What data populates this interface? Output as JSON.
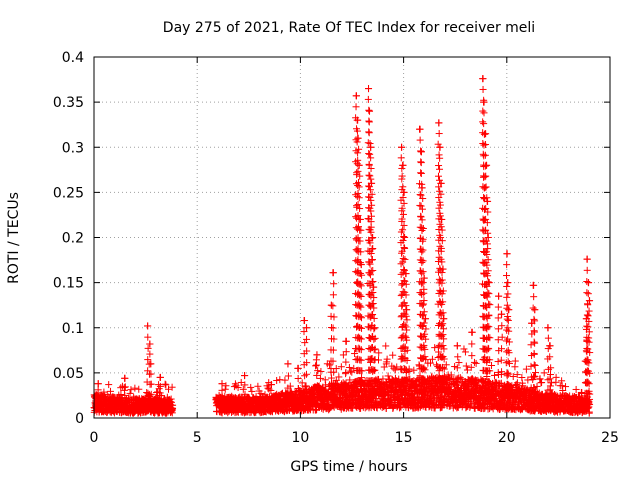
{
  "chart_data": {
    "type": "scatter",
    "title": "Day 275 of 2021, Rate Of TEC Index for receiver meli",
    "xlabel": "GPS time / hours",
    "ylabel": "ROTI / TECUs",
    "xlim": [
      0,
      25
    ],
    "ylim": [
      0,
      0.4
    ],
    "x_ticks": [
      0,
      5,
      10,
      15,
      20,
      25
    ],
    "y_ticks": [
      0,
      0.05,
      0.1,
      0.15,
      0.2,
      0.25,
      0.3,
      0.35,
      0.4
    ],
    "grid": true,
    "marker": "+",
    "series": [
      {
        "name": "ROTI",
        "color": "#ff0000",
        "gaps": [
          [
            3.8,
            5.9
          ]
        ],
        "x_range": [
          0,
          24
        ],
        "baseline": [
          [
            0,
            0.018
          ],
          [
            1,
            0.016
          ],
          [
            2,
            0.015
          ],
          [
            3,
            0.015
          ],
          [
            3.8,
            0.015
          ],
          [
            5.9,
            0.016
          ],
          [
            8,
            0.016
          ],
          [
            9.5,
            0.02
          ],
          [
            11,
            0.025
          ],
          [
            12.5,
            0.028
          ],
          [
            14,
            0.03
          ],
          [
            15.5,
            0.03
          ],
          [
            17,
            0.032
          ],
          [
            18.5,
            0.03
          ],
          [
            20,
            0.025
          ],
          [
            21,
            0.022
          ],
          [
            22.5,
            0.018
          ],
          [
            24,
            0.015
          ]
        ],
        "spikes": [
          {
            "x": 0.2,
            "y": 0.038
          },
          {
            "x": 1.5,
            "y": 0.044
          },
          {
            "x": 2.6,
            "y": 0.102
          },
          {
            "x": 2.7,
            "y": 0.082
          },
          {
            "x": 2.75,
            "y": 0.06
          },
          {
            "x": 3.2,
            "y": 0.045
          },
          {
            "x": 6.2,
            "y": 0.038
          },
          {
            "x": 7.3,
            "y": 0.047
          },
          {
            "x": 8.6,
            "y": 0.037
          },
          {
            "x": 9.4,
            "y": 0.06
          },
          {
            "x": 9.9,
            "y": 0.055
          },
          {
            "x": 10.2,
            "y": 0.108
          },
          {
            "x": 10.3,
            "y": 0.1
          },
          {
            "x": 10.8,
            "y": 0.07
          },
          {
            "x": 11.6,
            "y": 0.161
          },
          {
            "x": 11.5,
            "y": 0.125
          },
          {
            "x": 12.2,
            "y": 0.085
          },
          {
            "x": 12.7,
            "y": 0.357
          },
          {
            "x": 12.75,
            "y": 0.33
          },
          {
            "x": 12.8,
            "y": 0.31
          },
          {
            "x": 12.85,
            "y": 0.28
          },
          {
            "x": 12.9,
            "y": 0.22
          },
          {
            "x": 12.95,
            "y": 0.17
          },
          {
            "x": 13.3,
            "y": 0.365
          },
          {
            "x": 13.35,
            "y": 0.34
          },
          {
            "x": 13.4,
            "y": 0.3
          },
          {
            "x": 13.45,
            "y": 0.26
          },
          {
            "x": 13.5,
            "y": 0.2
          },
          {
            "x": 13.55,
            "y": 0.145
          },
          {
            "x": 13.6,
            "y": 0.1
          },
          {
            "x": 14.9,
            "y": 0.3
          },
          {
            "x": 14.95,
            "y": 0.28
          },
          {
            "x": 15.0,
            "y": 0.25
          },
          {
            "x": 15.05,
            "y": 0.2
          },
          {
            "x": 15.1,
            "y": 0.16
          },
          {
            "x": 15.15,
            "y": 0.12
          },
          {
            "x": 15.8,
            "y": 0.32
          },
          {
            "x": 15.85,
            "y": 0.295
          },
          {
            "x": 15.9,
            "y": 0.255
          },
          {
            "x": 15.95,
            "y": 0.21
          },
          {
            "x": 16.0,
            "y": 0.155
          },
          {
            "x": 16.05,
            "y": 0.11
          },
          {
            "x": 16.7,
            "y": 0.327
          },
          {
            "x": 16.75,
            "y": 0.3
          },
          {
            "x": 16.8,
            "y": 0.26
          },
          {
            "x": 16.85,
            "y": 0.22
          },
          {
            "x": 16.9,
            "y": 0.165
          },
          {
            "x": 16.95,
            "y": 0.11
          },
          {
            "x": 17.6,
            "y": 0.08
          },
          {
            "x": 18.3,
            "y": 0.095
          },
          {
            "x": 18.85,
            "y": 0.376
          },
          {
            "x": 18.9,
            "y": 0.35
          },
          {
            "x": 18.95,
            "y": 0.315
          },
          {
            "x": 19.0,
            "y": 0.28
          },
          {
            "x": 19.05,
            "y": 0.24
          },
          {
            "x": 19.1,
            "y": 0.2
          },
          {
            "x": 19.15,
            "y": 0.15
          },
          {
            "x": 19.6,
            "y": 0.135
          },
          {
            "x": 19.75,
            "y": 0.115
          },
          {
            "x": 20.0,
            "y": 0.182
          },
          {
            "x": 20.05,
            "y": 0.15
          },
          {
            "x": 20.1,
            "y": 0.12
          },
          {
            "x": 21.3,
            "y": 0.147
          },
          {
            "x": 21.35,
            "y": 0.12
          },
          {
            "x": 21.2,
            "y": 0.105
          },
          {
            "x": 22.0,
            "y": 0.1
          },
          {
            "x": 22.1,
            "y": 0.08
          },
          {
            "x": 23.9,
            "y": 0.176
          },
          {
            "x": 23.95,
            "y": 0.15
          },
          {
            "x": 24.0,
            "y": 0.13
          },
          {
            "x": 23.85,
            "y": 0.11
          },
          {
            "x": 23.9,
            "y": 0.085
          },
          {
            "x": 23.8,
            "y": 0.063
          }
        ]
      }
    ]
  }
}
